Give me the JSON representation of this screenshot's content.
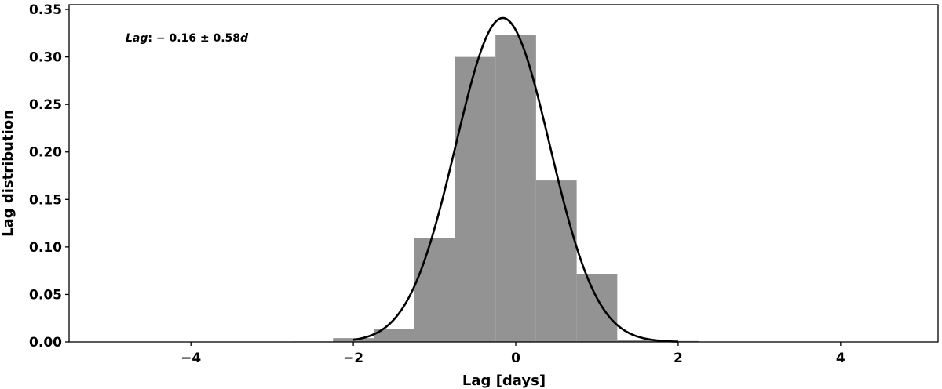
{
  "chart_data": {
    "type": "bar",
    "title": "",
    "xlabel": "Lag [days]",
    "ylabel": "Lag distribution",
    "annotation": {
      "prefix": "Lag",
      "body": ": − 0.16 ± 0.58",
      "suffix": "d"
    },
    "xlim": [
      -5.5,
      5.2
    ],
    "ylim": [
      0,
      0.355
    ],
    "xticks": [
      -4,
      -2,
      0,
      2,
      4
    ],
    "xtick_labels": [
      "−4",
      "−2",
      "0",
      "2",
      "4"
    ],
    "yticks": [
      0.0,
      0.05,
      0.1,
      0.15,
      0.2,
      0.25,
      0.3,
      0.35
    ],
    "ytick_labels": [
      "0.00",
      "0.05",
      "0.10",
      "0.15",
      "0.20",
      "0.25",
      "0.30",
      "0.35"
    ],
    "grid": false,
    "bar_color": "#939393",
    "bins": [
      {
        "x0": -2.75,
        "x1": -2.25,
        "value": 0.0005
      },
      {
        "x0": -2.25,
        "x1": -1.75,
        "value": 0.004
      },
      {
        "x0": -1.75,
        "x1": -1.25,
        "value": 0.014
      },
      {
        "x0": -1.25,
        "x1": -0.75,
        "value": 0.109
      },
      {
        "x0": -0.75,
        "x1": -0.25,
        "value": 0.3
      },
      {
        "x0": -0.25,
        "x1": 0.25,
        "value": 0.323
      },
      {
        "x0": 0.25,
        "x1": 0.75,
        "value": 0.17
      },
      {
        "x0": 0.75,
        "x1": 1.25,
        "value": 0.071
      },
      {
        "x0": 1.25,
        "x1": 1.75,
        "value": 0.002
      },
      {
        "x0": 1.75,
        "x1": 2.25,
        "value": 0.001
      }
    ],
    "fit_curve": {
      "type": "gaussian",
      "mean": -0.16,
      "sigma": 0.58,
      "peak": 0.341,
      "x_range": [
        -2.0,
        2.0
      ],
      "color": "#000000"
    }
  }
}
